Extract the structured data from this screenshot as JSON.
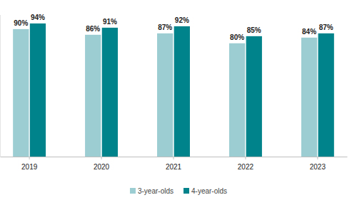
{
  "chart_data": {
    "type": "bar",
    "categories": [
      "2019",
      "2020",
      "2021",
      "2022",
      "2023"
    ],
    "series": [
      {
        "name": "3-year-olds",
        "color": "#9ccdd2",
        "values": [
          90,
          86,
          87,
          80,
          84
        ],
        "value_labels": [
          "90%",
          "86%",
          "87%",
          "80%",
          "84%"
        ]
      },
      {
        "name": "4-year-olds",
        "color": "#00838a",
        "values": [
          94,
          91,
          92,
          85,
          87
        ],
        "value_labels": [
          "94%",
          "91%",
          "92%",
          "85%",
          "87%"
        ]
      }
    ],
    "ylim": [
      0,
      100
    ],
    "data_labels": true,
    "tick_labels": "x",
    "legend": "bottom"
  }
}
